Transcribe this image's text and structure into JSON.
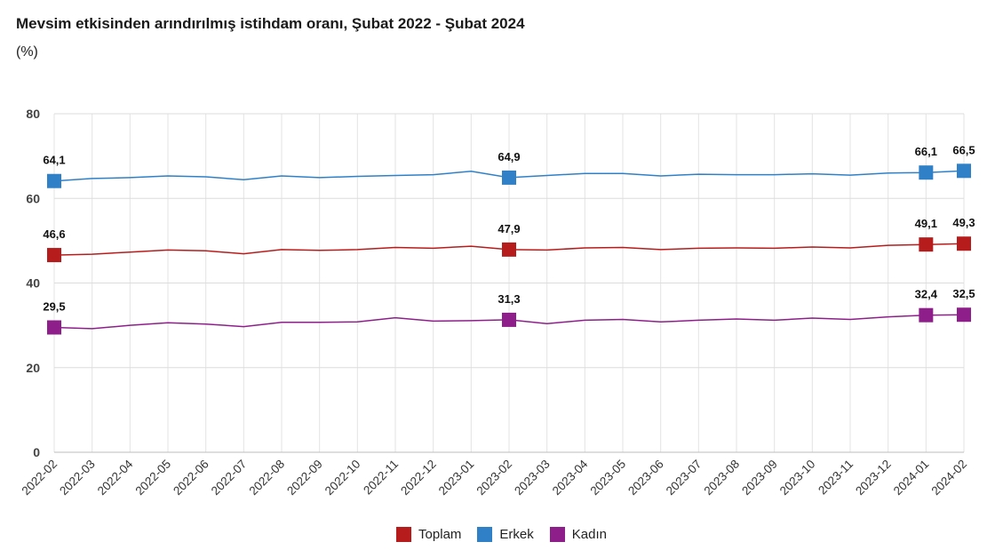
{
  "chart_data": {
    "type": "line",
    "title": "Mevsim etkisinden arındırılmış istihdam oranı, Şubat 2022 - Şubat 2024",
    "subtitle": "(%)",
    "xlabel": "",
    "ylabel": "",
    "ylim": [
      0,
      80
    ],
    "yticks": [
      0,
      20,
      40,
      60,
      80
    ],
    "grid": true,
    "legend_position": "bottom",
    "categories": [
      "2022-02",
      "2022-03",
      "2022-04",
      "2022-05",
      "2022-06",
      "2022-07",
      "2022-08",
      "2022-09",
      "2022-10",
      "2022-11",
      "2022-12",
      "2023-01",
      "2023-02",
      "2023-03",
      "2023-04",
      "2023-05",
      "2023-06",
      "2023-07",
      "2023-08",
      "2023-09",
      "2023-10",
      "2023-11",
      "2023-12",
      "2024-01",
      "2024-02"
    ],
    "series": [
      {
        "name": "Toplam",
        "color": "#b71c1c",
        "values": [
          46.6,
          46.8,
          47.3,
          47.8,
          47.6,
          46.9,
          47.9,
          47.7,
          47.9,
          48.4,
          48.2,
          48.7,
          47.9,
          47.8,
          48.3,
          48.4,
          47.9,
          48.2,
          48.3,
          48.2,
          48.5,
          48.3,
          48.9,
          49.1,
          49.3
        ],
        "markers": [
          0,
          12,
          23,
          24
        ],
        "marker_labels": [
          "46,6",
          "47,9",
          "49,1",
          "49,3"
        ]
      },
      {
        "name": "Erkek",
        "color": "#2f80c7",
        "values": [
          64.1,
          64.7,
          64.9,
          65.3,
          65.1,
          64.4,
          65.3,
          64.9,
          65.2,
          65.4,
          65.6,
          66.4,
          64.9,
          65.4,
          65.9,
          65.9,
          65.3,
          65.7,
          65.6,
          65.6,
          65.8,
          65.5,
          66.0,
          66.1,
          66.5
        ],
        "markers": [
          0,
          12,
          23,
          24
        ],
        "marker_labels": [
          "64,1",
          "64,9",
          "66,1",
          "66,5"
        ]
      },
      {
        "name": "Kadın",
        "color": "#8e1f8a",
        "values": [
          29.5,
          29.2,
          30.0,
          30.6,
          30.3,
          29.7,
          30.7,
          30.7,
          30.8,
          31.8,
          31.0,
          31.1,
          31.3,
          30.4,
          31.2,
          31.4,
          30.8,
          31.2,
          31.5,
          31.2,
          31.7,
          31.4,
          32.0,
          32.4,
          32.5
        ],
        "markers": [
          0,
          12,
          23,
          24
        ],
        "marker_labels": [
          "29,5",
          "31,3",
          "32,4",
          "32,5"
        ]
      }
    ]
  }
}
